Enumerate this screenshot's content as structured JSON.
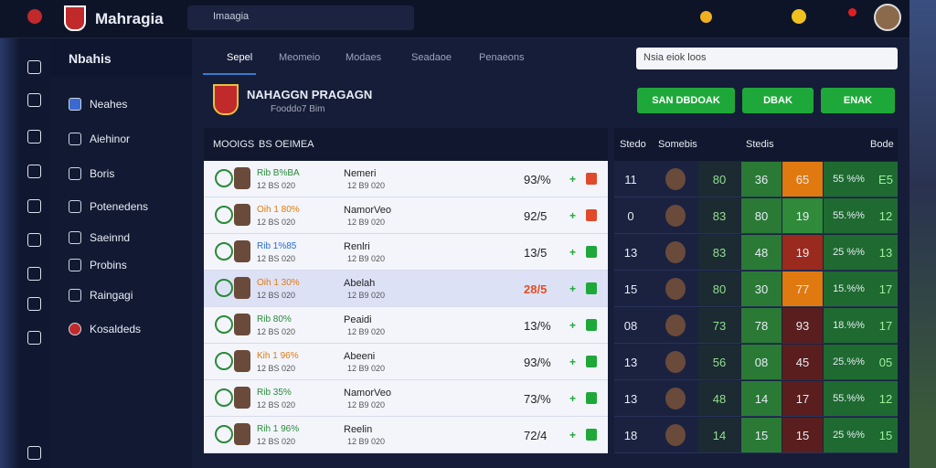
{
  "header": {
    "logo": "Mahragia",
    "search": "Imaagia"
  },
  "sidebar": {
    "title": "Nbahis",
    "items": [
      "Neahes",
      "Aiehinor",
      "Boris",
      "Potenedens",
      "Saeinnd",
      "Probins",
      "Raingagi",
      "Kosaldeds"
    ]
  },
  "tabs": [
    "Sepel",
    "Meomeio",
    "Modaes",
    "Seadaoe",
    "Penaeons"
  ],
  "filter": "Nsia eiok loos",
  "club": {
    "name": "NAHAGGN PRAGAGN",
    "sub": "Fooddo7 Bim"
  },
  "actions": [
    "SAN DBDOAK",
    "DBAK",
    "ENAK"
  ],
  "left_table": {
    "headers": [
      "MOOIGS",
      "BS OEIMEA"
    ],
    "rows": [
      {
        "line1": "Rib B%BA",
        "line1_color": "#2a8a3a",
        "line2": "12 BS 020",
        "name": "Nemeri",
        "sub": "12 B9 020",
        "pct": "93/%"
      },
      {
        "line1": "Oih 1 80%",
        "line1_color": "#e07a10",
        "line2": "12 BS 020",
        "name": "NamorVeo",
        "sub": "12 B9 020",
        "pct": "92/5"
      },
      {
        "line1": "Rib 1%85",
        "line1_color": "#2a6ad0",
        "line2": "12 BS 020",
        "name": "Renlri",
        "sub": "12 B9 020",
        "pct": "13/5"
      },
      {
        "line1": "Oih 1 30%",
        "line1_color": "#e07a10",
        "line2": "12 BS 020",
        "name": "Abelah",
        "sub": "12 B9 020",
        "pct": "28/5"
      },
      {
        "line1": "Rib 80%",
        "line1_color": "#2a8a3a",
        "line2": "12 BS 020",
        "name": "Peaidi",
        "sub": "12 B9 020",
        "pct": "13/%"
      },
      {
        "line1": "Kih 1 96%",
        "line1_color": "#e07a10",
        "line2": "12 BS 020",
        "name": "Abeeni",
        "sub": "12 B9 020",
        "pct": "93/%"
      },
      {
        "line1": "Rib 35%",
        "line1_color": "#2a8a3a",
        "line2": "12 BS 020",
        "name": "NamorVeo",
        "sub": "12 B9 020",
        "pct": "73/%"
      },
      {
        "line1": "Rih 1 96%",
        "line1_color": "#2a8a3a",
        "line2": "12 BS 020",
        "name": "Reelin",
        "sub": "12 B9 020",
        "pct": "72/4"
      }
    ]
  },
  "right_table": {
    "headers": [
      "Stedo",
      "Somebis",
      "Stedis",
      "Bode"
    ],
    "rows": [
      {
        "rank": "11",
        "a": "80",
        "b": "36",
        "c": "65",
        "c_color": "#e07a10",
        "pct": "55 %%",
        "e": "E5"
      },
      {
        "rank": "0",
        "a": "83",
        "b": "80",
        "c": "19",
        "c_color": "#2f8a3a",
        "pct": "55.%%",
        "e": "12"
      },
      {
        "rank": "13",
        "a": "83",
        "b": "48",
        "c": "19",
        "c_color": "#9a2a1e",
        "pct": "25 %%",
        "e": "13"
      },
      {
        "rank": "15",
        "a": "80",
        "b": "30",
        "c": "77",
        "c_color": "#e07a10",
        "pct": "15.%%",
        "e": "17"
      },
      {
        "rank": "08",
        "a": "73",
        "b": "78",
        "c": "93",
        "c_color": "#5a1e1e",
        "pct": "18.%%",
        "e": "17"
      },
      {
        "rank": "13",
        "a": "56",
        "b": "08",
        "c": "45",
        "c_color": "#5a1e1e",
        "pct": "25.%%",
        "e": "05"
      },
      {
        "rank": "13",
        "a": "48",
        "b": "14",
        "c": "17",
        "c_color": "#5a1e1e",
        "pct": "55.%%",
        "e": "12"
      },
      {
        "rank": "18",
        "a": "14",
        "b": "15",
        "c": "15",
        "c_color": "#5a1e1e",
        "pct": "25 %%",
        "e": "15"
      }
    ]
  }
}
